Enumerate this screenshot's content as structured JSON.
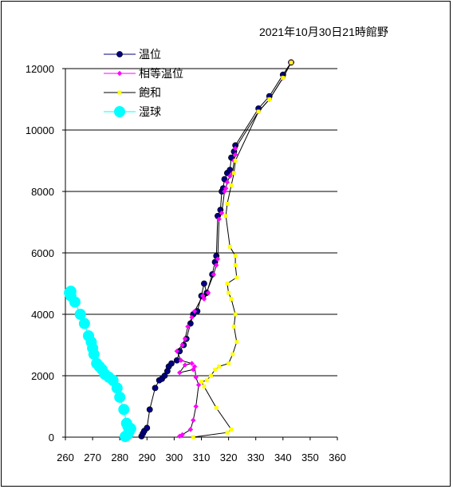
{
  "chart_data": {
    "type": "line",
    "title": "2021年10月30日21時館野",
    "xlim": [
      260,
      360
    ],
    "ylim": [
      0,
      12000
    ],
    "xticks": [
      260,
      270,
      280,
      290,
      300,
      310,
      320,
      330,
      340,
      350,
      360
    ],
    "yticks": [
      0,
      2000,
      4000,
      6000,
      8000,
      10000,
      12000
    ],
    "grid": "horizontal",
    "legend_position": "top-left",
    "series": [
      {
        "name": "温位",
        "color": "#000080",
        "marker": "circle",
        "x": [
          288.0,
          288.5,
          289.0,
          290.0,
          291.0,
          293.0,
          294.5,
          295.5,
          296.5,
          297.5,
          298.0,
          299.0,
          301.0,
          302.0,
          303.5,
          304.5,
          306.0,
          307.0,
          308.5,
          310.0,
          311.0,
          312.0,
          314.0,
          315.0,
          315.5,
          316.0,
          317.0,
          317.5,
          318.0,
          318.5,
          319.5,
          320.5,
          321.0,
          322.0,
          322.5,
          331.0,
          335.0,
          340.0,
          343.0
        ],
        "y": [
          30,
          120,
          200,
          300,
          900,
          1600,
          1850,
          1900,
          2000,
          2150,
          2300,
          2400,
          2500,
          2800,
          3000,
          3200,
          3700,
          4000,
          4100,
          4600,
          5000,
          4700,
          5300,
          5700,
          5900,
          7200,
          7400,
          8000,
          8100,
          8400,
          8600,
          8700,
          9100,
          9300,
          9500,
          10700,
          11100,
          11800,
          12200
        ]
      },
      {
        "name": "相等温位",
        "color": "#ff00ff",
        "marker": "diamond",
        "x": [
          302.0,
          303.0,
          306.0,
          307.0,
          308.0,
          309.0,
          308.0,
          307.5,
          307.0,
          302.0,
          304.0,
          306.5,
          302.5,
          301.0,
          303.0,
          304.0,
          305.0,
          306.5,
          307.5,
          310.5,
          312.5,
          311.0,
          314.5,
          315.5,
          316.0,
          316.5,
          317.5,
          318.5,
          319.0,
          319.5,
          320.5,
          321.5,
          322.0,
          322.5,
          322.5,
          331.0,
          335.0,
          340.0,
          343.0
        ],
        "y": [
          30,
          80,
          250,
          550,
          1000,
          1700,
          1950,
          2300,
          2200,
          2100,
          2350,
          2400,
          2500,
          2800,
          3000,
          3200,
          3600,
          3900,
          4100,
          4600,
          4700,
          4500,
          5300,
          5600,
          5800,
          7100,
          7300,
          8000,
          8100,
          8300,
          8500,
          8600,
          9000,
          9200,
          9400,
          10600,
          11000,
          11700,
          12200
        ]
      },
      {
        "name": "飽和",
        "color": "#ffff00",
        "marker": "square",
        "x": [
          307.0,
          319.5,
          321.0,
          315.5,
          311.0,
          310.0,
          312.0,
          313.5,
          315.0,
          316.5,
          320.0,
          321.5,
          323.0,
          322.0,
          322.5,
          321.0,
          320.0,
          319.5,
          323.0,
          322.5,
          322.5,
          320.5,
          319.0,
          319.5,
          321.0,
          322.0,
          322.5,
          331.0,
          335.0,
          340.0,
          343.0
        ],
        "y": [
          0,
          150,
          250,
          950,
          1650,
          1800,
          1850,
          2000,
          2200,
          2300,
          2400,
          2700,
          3100,
          3600,
          4000,
          4500,
          4700,
          5000,
          5200,
          5600,
          5900,
          6200,
          7200,
          7600,
          8200,
          8600,
          9000,
          10600,
          11000,
          11700,
          12200
        ]
      },
      {
        "name": "湿球",
        "color": "#00ffff",
        "marker": "large-circle",
        "x": [
          282.0,
          283.0,
          283.5,
          284.0,
          283.0,
          282.5,
          281.5,
          280.0,
          279.0,
          277.5,
          276.0,
          274.5,
          273.5,
          272.5,
          271.5,
          270.5,
          270.0,
          269.5,
          268.5,
          267.0,
          265.5,
          263.5,
          262.0,
          261.5,
          262.0
        ],
        "y": [
          20,
          100,
          200,
          280,
          350,
          450,
          900,
          1300,
          1600,
          1850,
          1950,
          2050,
          2200,
          2300,
          2400,
          2700,
          2900,
          3100,
          3300,
          3700,
          4000,
          4400,
          4600,
          4700,
          4750
        ]
      }
    ]
  }
}
